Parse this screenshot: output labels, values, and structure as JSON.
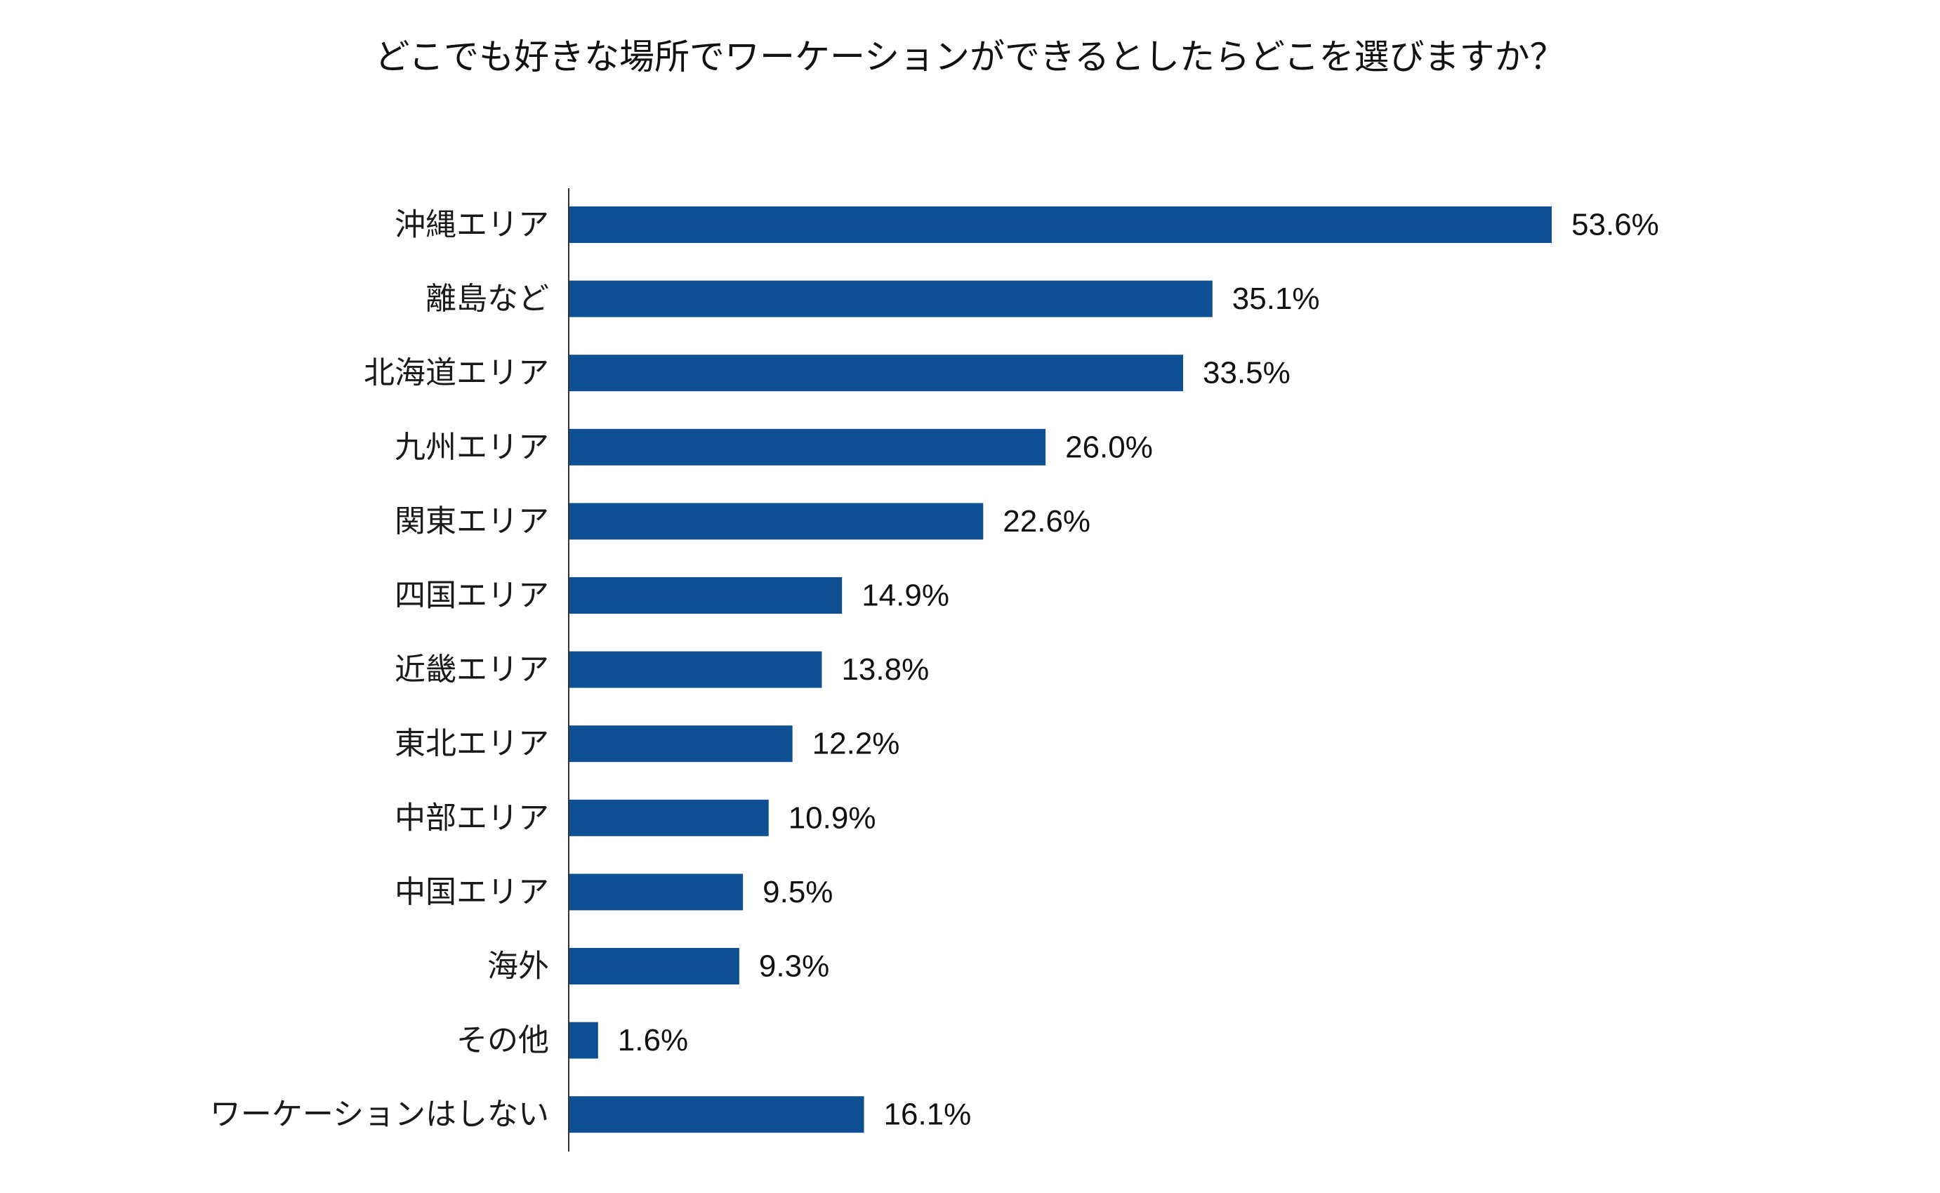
{
  "chart_data": {
    "type": "bar",
    "orientation": "horizontal",
    "title": "どこでも好きな場所でワーケーションができるとしたらどこを選びますか？",
    "xlabel": "",
    "ylabel": "",
    "xlim": [
      0,
      55
    ],
    "grid": false,
    "legend": "none",
    "bar_color": "#0f5094",
    "axis_color": "#333333",
    "value_suffix": "%",
    "categories": [
      "沖縄エリア",
      "離島など",
      "北海道エリア",
      "九州エリア",
      "関東エリア",
      "四国エリア",
      "近畿エリア",
      "東北エリア",
      "中部エリア",
      "中国エリア",
      "海外",
      "その他",
      "ワーケーションはしない"
    ],
    "values": [
      53.6,
      35.1,
      33.5,
      26.0,
      22.6,
      14.9,
      13.8,
      12.2,
      10.9,
      9.5,
      9.3,
      1.6,
      16.1
    ],
    "value_labels": [
      "53.6%",
      "35.1%",
      "33.5%",
      "26.0%",
      "22.6%",
      "14.9%",
      "13.8%",
      "12.2%",
      "10.9%",
      "9.5%",
      "9.3%",
      "1.6%",
      "16.1%"
    ]
  }
}
